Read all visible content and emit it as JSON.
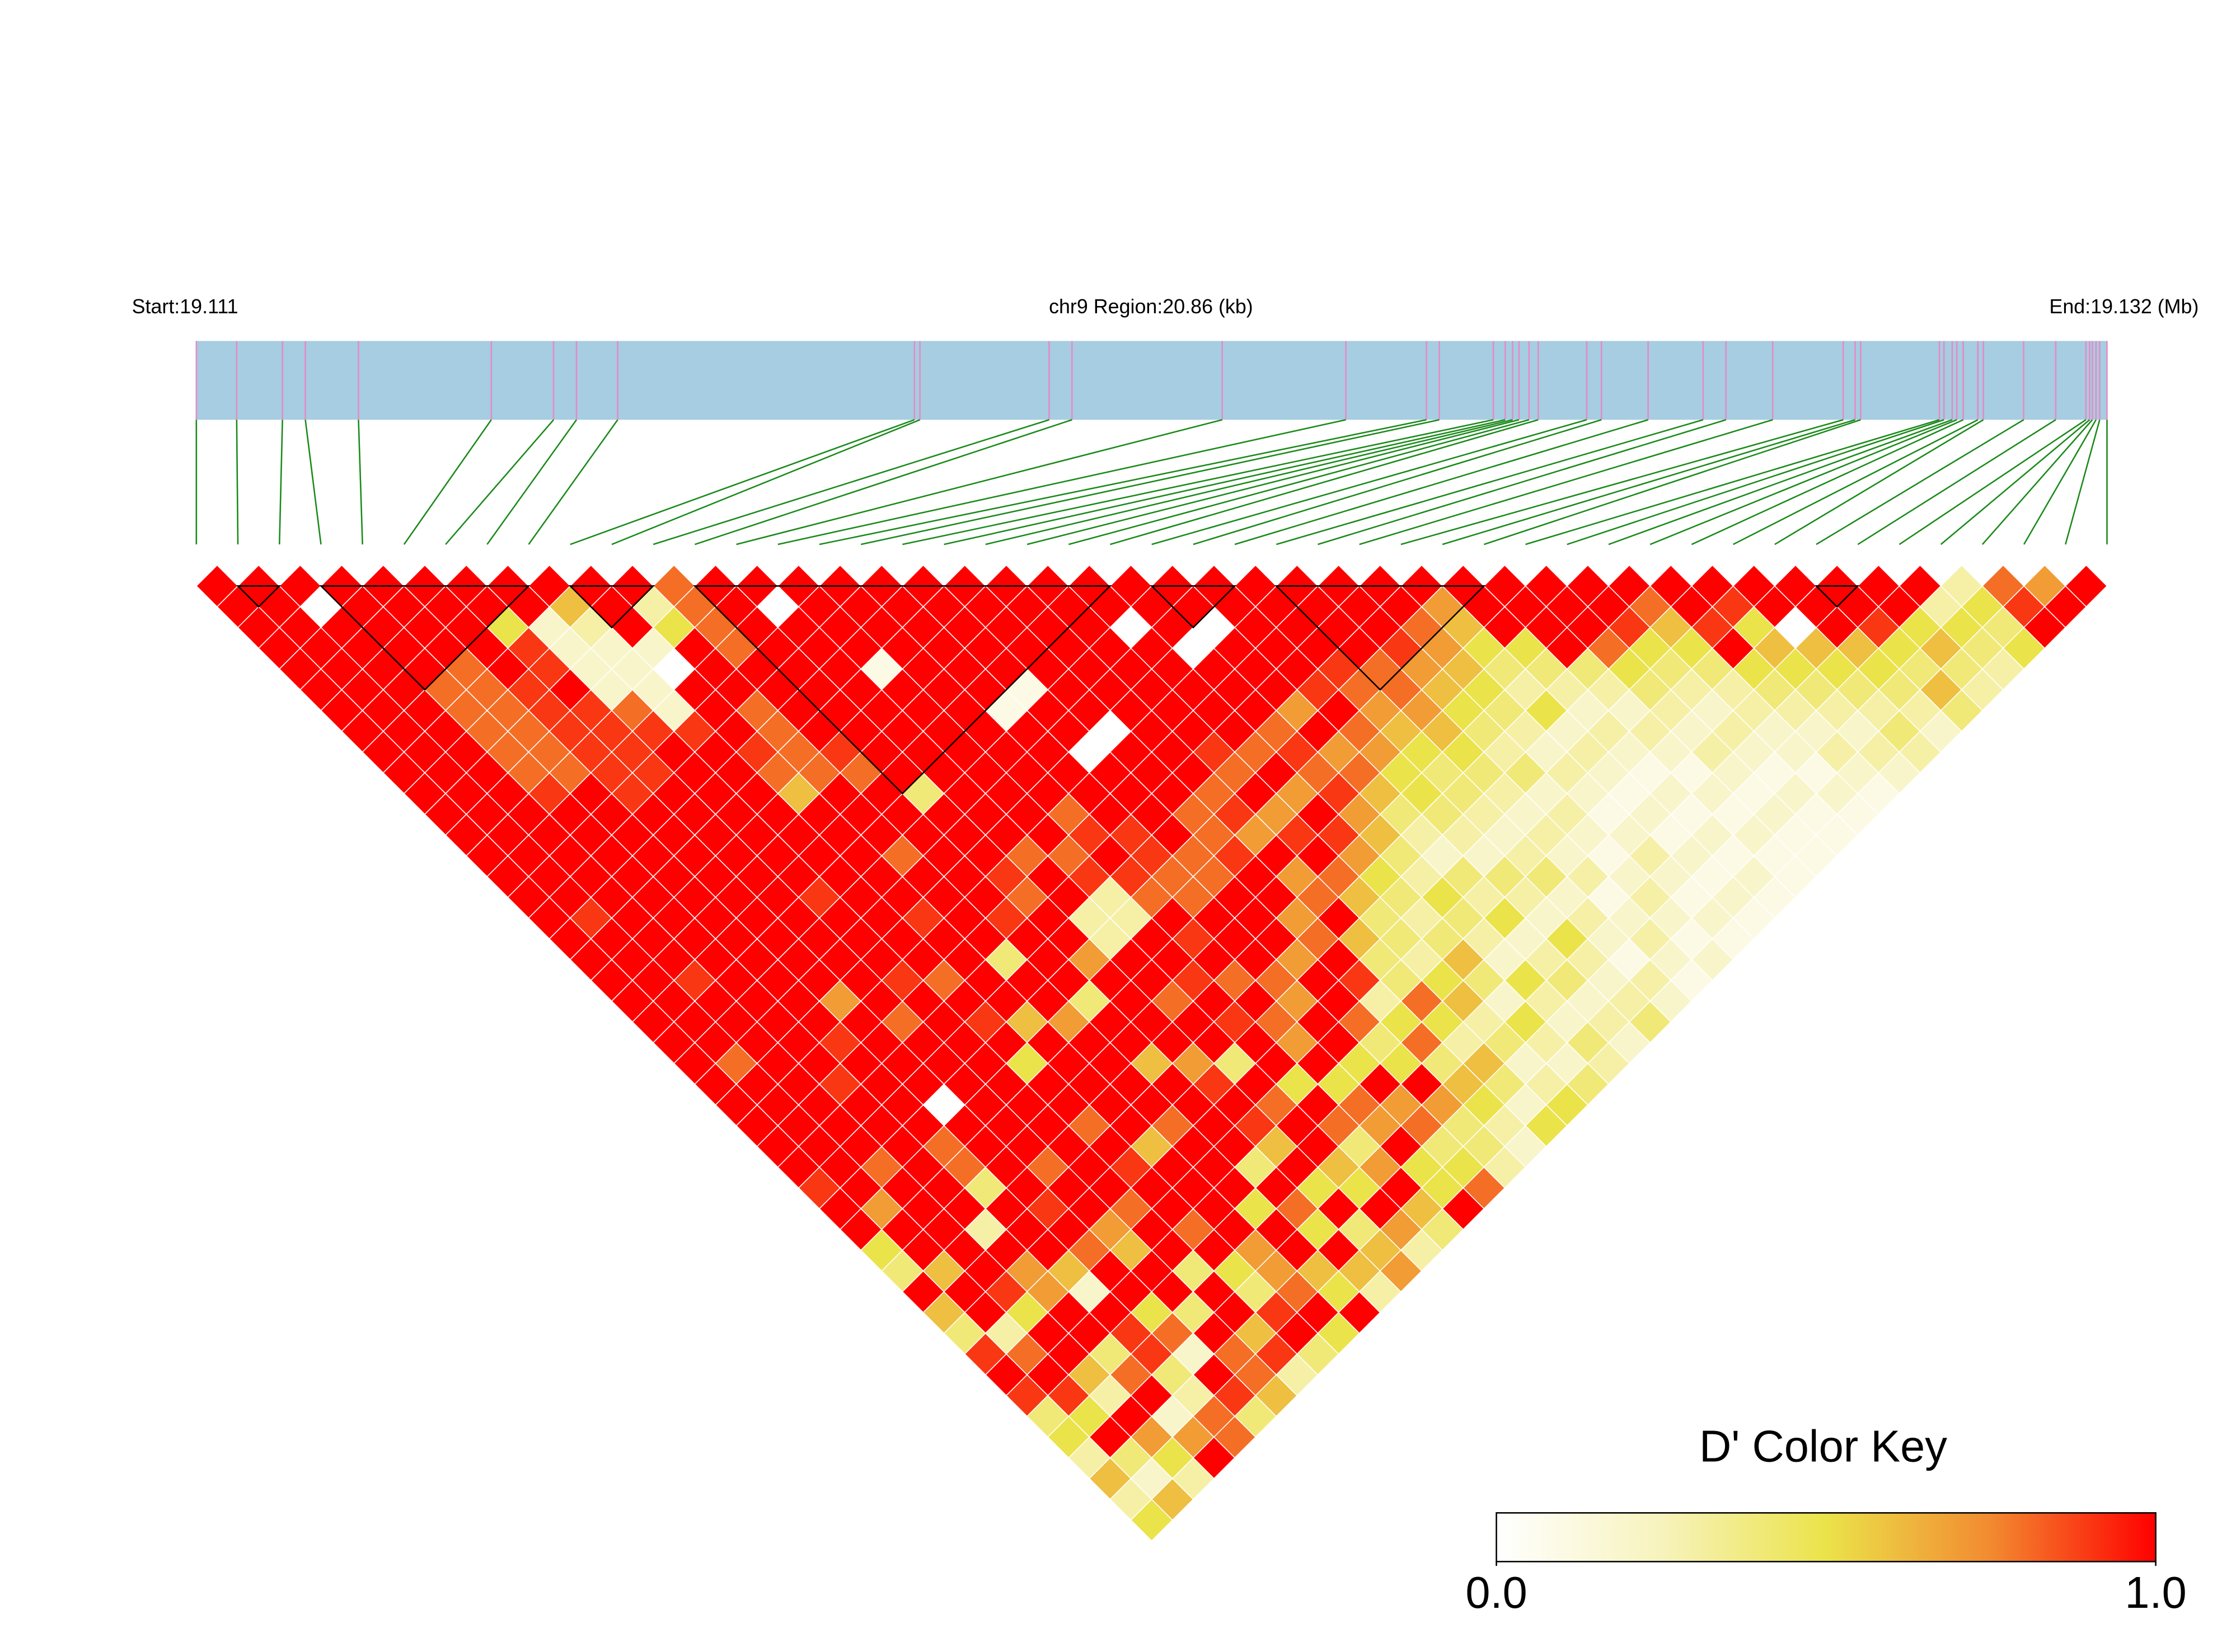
{
  "chart_data": {
    "type": "ld_heatmap",
    "start_label": "Start:19.111",
    "region_label": "chr9 Region:20.86 (kb)",
    "end_label": "End:19.132 (Mb)",
    "key_title": "D' Color Key",
    "key_ticks": [
      {
        "value": 0,
        "label": "0.0"
      },
      {
        "value": 1,
        "label": "1.0"
      }
    ],
    "colormap": [
      "#ffffff",
      "#f7f3bd",
      "#ebe34a",
      "#f28a30",
      "#ff0000"
    ],
    "bar_color": "#a6cde1",
    "snp_line_color": "#e58ac6",
    "connector_color": "#1a8a1a",
    "block_color": "#000000",
    "xlim": [
      0,
      20.86
    ],
    "snp_positions": [
      0,
      0.44,
      0.94,
      1.19,
      1.77,
      3.22,
      3.9,
      4.15,
      4.6,
      7.84,
      7.9,
      9.31,
      9.56,
      11.2,
      12.55,
      13.43,
      13.57,
      14.16,
      14.29,
      14.37,
      14.44,
      14.55,
      14.65,
      15.18,
      15.34,
      15.85,
      16.45,
      16.7,
      17.21,
      17.98,
      18.11,
      18.17,
      19.03,
      19.08,
      19.17,
      19.22,
      19.29,
      19.45,
      19.51,
      19.95,
      20.3,
      20.63,
      20.67,
      20.7,
      20.74,
      20.78,
      20.86
    ],
    "blocks": [
      [
        1,
        2
      ],
      [
        3,
        8
      ],
      [
        9,
        11
      ],
      [
        12,
        22
      ],
      [
        23,
        25
      ],
      [
        26,
        31
      ],
      [
        39,
        40
      ]
    ],
    "ld": [
      [
        1,
        1,
        1,
        1,
        1,
        1,
        1,
        1,
        1,
        1,
        1,
        1,
        1,
        1,
        1,
        1,
        1,
        1,
        1,
        1,
        1,
        1,
        1,
        1,
        1,
        1,
        1,
        1,
        1,
        0.9,
        1,
        1,
        0.5,
        0.4,
        1,
        0.6,
        0.4,
        0.9,
        1,
        0.9,
        0.4,
        0.5,
        0.3,
        0.6,
        0.3,
        0.5
      ],
      [
        1,
        1,
        1,
        1,
        1,
        1,
        1,
        1,
        1,
        1,
        1,
        1,
        1,
        1,
        1,
        1,
        0.9,
        1,
        1,
        1,
        1,
        1,
        1,
        0.8,
        1,
        1,
        1,
        1,
        1,
        1,
        0.7,
        1,
        1,
        0.6,
        1,
        1,
        0.3,
        0.8,
        1,
        0.9,
        0.5,
        1,
        0.4,
        0.2,
        0.6
      ],
      [
        1,
        0,
        1,
        1,
        1,
        1,
        1,
        1,
        1,
        1,
        1,
        1,
        1,
        1,
        1,
        1,
        1,
        1,
        1,
        0.9,
        1,
        1,
        1,
        1,
        1,
        1,
        1,
        1,
        0.8,
        1,
        1,
        1,
        1,
        1,
        0.9,
        0.5,
        1,
        1,
        0.6,
        0.3,
        1,
        0.7,
        0.5,
        0.3
      ],
      [
        1,
        1,
        1,
        1,
        1,
        0.8,
        0.8,
        0.8,
        0.8,
        0.8,
        0.9,
        1,
        1,
        1,
        1,
        1,
        1,
        1,
        1,
        1,
        1,
        1,
        1,
        1,
        0.9,
        1,
        1,
        1,
        1,
        1,
        1,
        0.3,
        1,
        0.7,
        0.7,
        1,
        1,
        0.4,
        0.8,
        1,
        0.2,
        0.7,
        1
      ],
      [
        1,
        1,
        1,
        1,
        0.8,
        0.8,
        0.8,
        0.8,
        0.8,
        0.8,
        1,
        1,
        1,
        1,
        1,
        1,
        1,
        1,
        1,
        1,
        1,
        1,
        0.9,
        1,
        1,
        1,
        1,
        0.8,
        0.8,
        0.4,
        1,
        1,
        1,
        0.6,
        0.2,
        1,
        0.9,
        0.9,
        0.4,
        0.3,
        0.8,
        0.8
      ],
      [
        1,
        1,
        1,
        1,
        1,
        0.9,
        0.9,
        0.9,
        0.9,
        0.9,
        0.9,
        1,
        1,
        1,
        1,
        1,
        1,
        1,
        1,
        1,
        0.7,
        1,
        1,
        1,
        1,
        0,
        1,
        1,
        1,
        1,
        0.9,
        1,
        0.8,
        1,
        1,
        0.5,
        0.8,
        0.2,
        1,
        0.9,
        0.4
      ],
      [
        1,
        1,
        0.5,
        0.9,
        0.9,
        1,
        0.9,
        0.9,
        0.9,
        0.9,
        1,
        1,
        1,
        1,
        1,
        1,
        1,
        1,
        1,
        1,
        1,
        0.8,
        1,
        1,
        1,
        1,
        1,
        1,
        0.8,
        1,
        1,
        0.7,
        0.6,
        1,
        1,
        0.4,
        1,
        0.8,
        0.8,
        0.6
      ],
      [
        1,
        1,
        0.2,
        0.2,
        0.2,
        0.2,
        0.8,
        0.9,
        1,
        1,
        1,
        1,
        1,
        1,
        1,
        0.9,
        1,
        1,
        1,
        0.9,
        1,
        1,
        1,
        1,
        1,
        1,
        1,
        1,
        1,
        1,
        0.8,
        1,
        1,
        0.4,
        1,
        1,
        0.6,
        0.9,
        0.3
      ],
      [
        1,
        0.6,
        0.3,
        0.2,
        0.2,
        0.2,
        0.2,
        0.9,
        1,
        1,
        1,
        1,
        1,
        1,
        1,
        1,
        1,
        1,
        1,
        0.8,
        1,
        0.9,
        1,
        0.5,
        1,
        1,
        0.8,
        1,
        0.9,
        1,
        1,
        0.8,
        1,
        0.5,
        0.4,
        0.9,
        1,
        0.4
      ],
      [
        1,
        1,
        1,
        0.2,
        0,
        1,
        1,
        1,
        0.9,
        0.8,
        0.6,
        1,
        1,
        1,
        1,
        1,
        0.9,
        1,
        1,
        1,
        1,
        0.6,
        1,
        1,
        1,
        1,
        1,
        0.6,
        1,
        1,
        1,
        1,
        0.7,
        0.7,
        0.8,
        1,
        0.5
      ],
      [
        1,
        0.3,
        0.5,
        1,
        1,
        1,
        0.8,
        0.8,
        0.8,
        0.8,
        1,
        1,
        1,
        0.8,
        1,
        1,
        1,
        1,
        0.4,
        1,
        1,
        0.7,
        1,
        1,
        1,
        1,
        0.8,
        1,
        1,
        1,
        0.5,
        1,
        1,
        0.6,
        0.5,
        1
      ],
      [
        0.8,
        0.8,
        0.8,
        0.8,
        1,
        1,
        1,
        1,
        0.9,
        0.8,
        1,
        1,
        1,
        1,
        1,
        1,
        0.9,
        1,
        1,
        1,
        0.4,
        1,
        1,
        0.6,
        1,
        1,
        1,
        1,
        0.4,
        1,
        0.8,
        0.5,
        1,
        0.6,
        0.3
      ],
      [
        1,
        1,
        1,
        1,
        1,
        1,
        1,
        1,
        1,
        1,
        0.4,
        1,
        1,
        1,
        0.9,
        0.8,
        1,
        1,
        0.7,
        1,
        1,
        1,
        1,
        0.7,
        0.9,
        1,
        0.9,
        0.6,
        1,
        0.5,
        1,
        0.4,
        0.6,
        0.7
      ],
      [
        1,
        0,
        1,
        1,
        1,
        1,
        1,
        1,
        1,
        1,
        1,
        1,
        1,
        0.8,
        1,
        1,
        0.3,
        0.3,
        1,
        1,
        0.8,
        1,
        1,
        0.4,
        1,
        0.8,
        1,
        1,
        0.6,
        0.5,
        1,
        0.7,
        0.3
      ],
      [
        1,
        1,
        1,
        1,
        0.1,
        1,
        1,
        1,
        1,
        1,
        1,
        1,
        1,
        0.8,
        0.9,
        0.3,
        0.3,
        1,
        1,
        0.9,
        1,
        0.9,
        1,
        1,
        0.5,
        1,
        0.8,
        0.4,
        0.7,
        1,
        0.6,
        0.4
      ],
      [
        1,
        1,
        1,
        1,
        1,
        1,
        1,
        1,
        1,
        1,
        1,
        0.8,
        0.9,
        1,
        0.9,
        0.8,
        1,
        0.9,
        1,
        0.8,
        1,
        0.8,
        0.7,
        1,
        0.5,
        0.8,
        0.7,
        1,
        0.5,
        0.5,
        1
      ],
      [
        1,
        1,
        1,
        1,
        1,
        1,
        0.1,
        1,
        1,
        1,
        1,
        1,
        0.9,
        0.9,
        0.8,
        0.8,
        1,
        1,
        1,
        0.8,
        0.7,
        1,
        1,
        0.5,
        1,
        0.7,
        0.8,
        0.4,
        0.5,
        0.8
      ],
      [
        1,
        1,
        1,
        1,
        1,
        0.1,
        1,
        1,
        0,
        1,
        1,
        1,
        1,
        0.8,
        0.8,
        1,
        1,
        1,
        0.7,
        1,
        1,
        0.8,
        0.4,
        0.5,
        1,
        0.7,
        0.4,
        0.4,
        0.3
      ],
      [
        1,
        1,
        1,
        1,
        1,
        1,
        1,
        0,
        1,
        1,
        1,
        0.8,
        0.8,
        0.9,
        1,
        1,
        0.7,
        0.8,
        1,
        0.9,
        0.3,
        0.5,
        0.8,
        0.4,
        0.6,
        0.5,
        0.3,
        0.2
      ],
      [
        1,
        1,
        1,
        1,
        1,
        1,
        1,
        1,
        1,
        1,
        0.8,
        0.9,
        0.7,
        1,
        0.7,
        0.8,
        1,
        0.6,
        0.4,
        0.4,
        0.8,
        0.5,
        0.3,
        0.6,
        0.4,
        0.2,
        0.5
      ],
      [
        1,
        1,
        1,
        1,
        1,
        1,
        1,
        1,
        0.9,
        0.8,
        1,
        0.7,
        0.9,
        1,
        0.8,
        0.6,
        0.4,
        0.4,
        0.3,
        0.5,
        0.6,
        0.3,
        0.4,
        0.2,
        0.3,
        0.5
      ],
      [
        1,
        1,
        0,
        1,
        1,
        1,
        1,
        1,
        0.8,
        1,
        0.7,
        1,
        0.9,
        0.7,
        0.5,
        0.4,
        0.3,
        0.4,
        0.6,
        0.4,
        0.2,
        0.5,
        0.3,
        0.2,
        0.4
      ],
      [
        1,
        1,
        1,
        0,
        1,
        1,
        1,
        0.8,
        0.9,
        0.8,
        0.9,
        0.7,
        0.6,
        0.4,
        0.3,
        0.5,
        0.4,
        0.3,
        0.2,
        0.5,
        0.3,
        0.2,
        0.4,
        0.3
      ],
      [
        1,
        1,
        0,
        1,
        1,
        1,
        0.7,
        1,
        0.7,
        0.8,
        0.6,
        0.4,
        0.3,
        0.2,
        0.4,
        0.3,
        0.5,
        0.2,
        0.3,
        0.4,
        0.2,
        0.3,
        0.2
      ],
      [
        1,
        1,
        1,
        1,
        1,
        0.9,
        1,
        0.8,
        0.7,
        0.5,
        0.5,
        0.4,
        0.3,
        0.2,
        0.4,
        0.3,
        0.2,
        0.5,
        0.3,
        0.2,
        0.3,
        0.4
      ],
      [
        1,
        1,
        1,
        1,
        0.9,
        0.8,
        0.7,
        0.6,
        0.5,
        0.4,
        0.4,
        0.3,
        0.2,
        0.3,
        0.4,
        0.2,
        0.3,
        0.2,
        0.1,
        0.3,
        0.2
      ],
      [
        1,
        1,
        1,
        1,
        0.8,
        0.8,
        0.7,
        0.6,
        0.5,
        0.4,
        0.3,
        0.2,
        0.3,
        0.2,
        0.3,
        0.1,
        0.2,
        0.3,
        0.2,
        0.1
      ],
      [
        1,
        1,
        1,
        0.9,
        0.7,
        0.6,
        0.5,
        0.4,
        0.3,
        0.4,
        0.2,
        0.3,
        0.2,
        0.1,
        0.2,
        0.3,
        0.2,
        0.1,
        0.2
      ],
      [
        1,
        1,
        0.8,
        0.7,
        0.6,
        0.5,
        0.4,
        0.3,
        0.2,
        0.3,
        0.2,
        0.1,
        0.2,
        0.3,
        0.2,
        0.1,
        0.2,
        0.1
      ],
      [
        1,
        0.7,
        0.6,
        0.5,
        0.4,
        0.3,
        0.5,
        0.2,
        0.3,
        0.2,
        0.1,
        0.2,
        0.1,
        0.2,
        0.1,
        0.2,
        0.1
      ],
      [
        1,
        1,
        1,
        0.5,
        0.4,
        0.3,
        0.2,
        0.3,
        0.2,
        0.1,
        0.2,
        0.1,
        0.2,
        0.1,
        0.2,
        0.1
      ],
      [
        1,
        1,
        1,
        1,
        0.4,
        0.3,
        0.2,
        0.3,
        0.2,
        0.1,
        0.2,
        0.1,
        0.2,
        0.1,
        0.1
      ],
      [
        1,
        1,
        1,
        0.8,
        0.5,
        0.4,
        0.3,
        0.2,
        0.3,
        0.2,
        0.1,
        0.2,
        0.1,
        0.1
      ],
      [
        1,
        1,
        0.9,
        0.5,
        0.4,
        0.3,
        0.2,
        0.3,
        0.2,
        0.1,
        0.2,
        0.1,
        0.1
      ],
      [
        1,
        0.8,
        0.6,
        0.5,
        0.4,
        0.3,
        0.3,
        0.2,
        0.2,
        0.1,
        0.2,
        0.1
      ],
      [
        1,
        1,
        0.9,
        1,
        0.5,
        0.4,
        0.3,
        0.2,
        0.3,
        0.2,
        0.1
      ],
      [
        1,
        0.9,
        0.5,
        0.6,
        0.5,
        0.4,
        0.3,
        0.2,
        0.3,
        0.2
      ],
      [
        1,
        1,
        0,
        0.6,
        0.5,
        0.4,
        0.3,
        0.4,
        0.3
      ],
      [
        1,
        1,
        1,
        0.6,
        0.5,
        0.4,
        0.3,
        0.2
      ],
      [
        1,
        1,
        0.9,
        0.5,
        0.4,
        0.6,
        0.4
      ],
      [
        1,
        1,
        0.5,
        0.6,
        0.4,
        0.3
      ],
      [
        1,
        0.3,
        0.5,
        0.4,
        0.3
      ],
      [
        0.3,
        0.5,
        0.4,
        0.5
      ],
      [
        0.8,
        0.9,
        1
      ],
      [
        0.7,
        1
      ],
      [
        1
      ]
    ]
  }
}
